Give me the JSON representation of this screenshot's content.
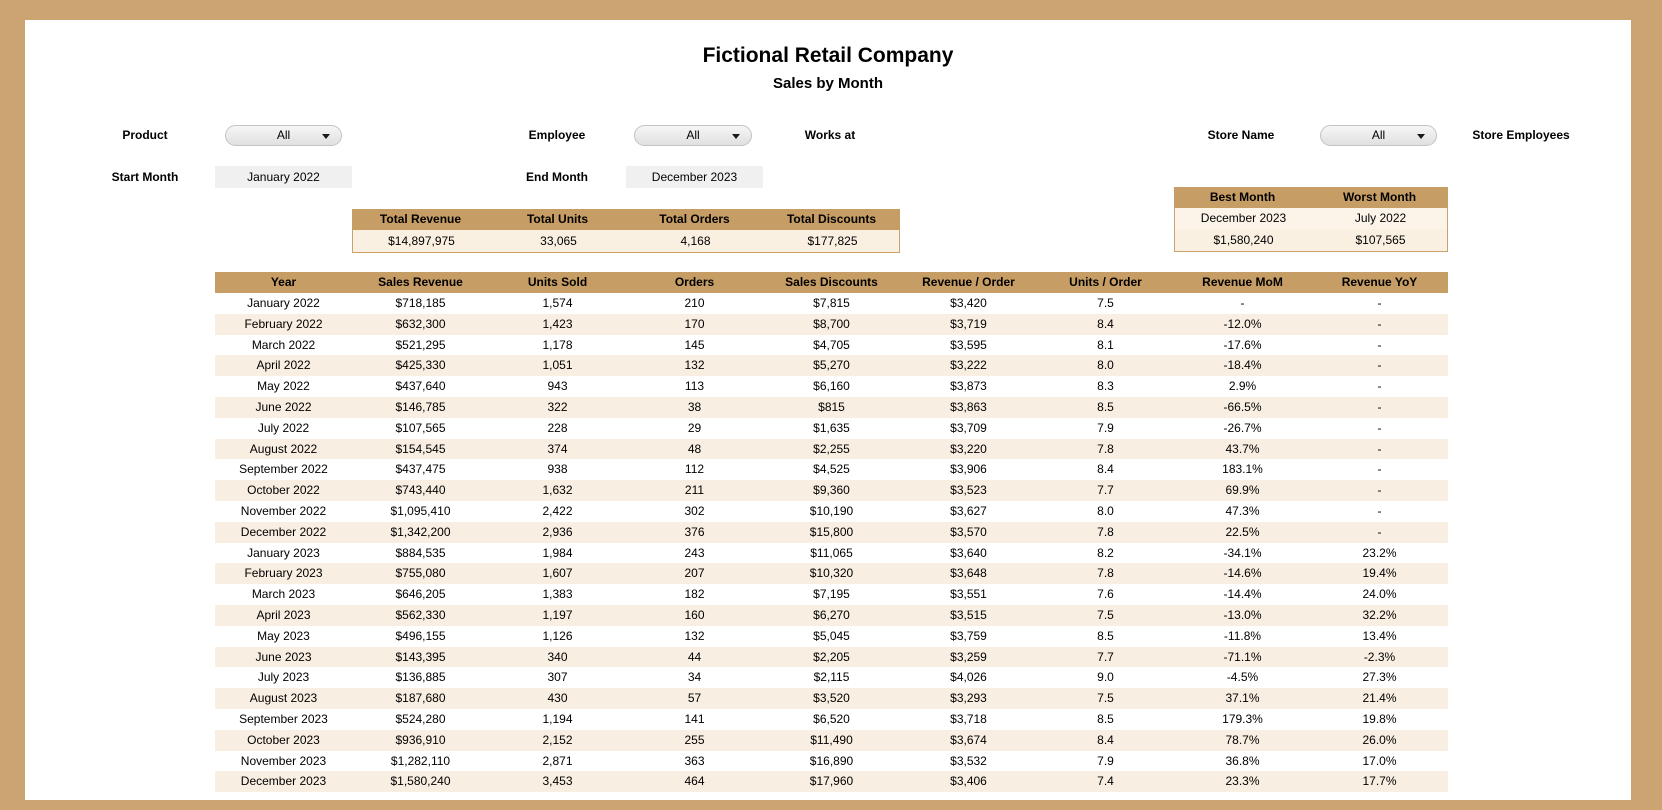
{
  "title": "Fictional Retail Company",
  "subtitle": "Sales by Month",
  "filters": {
    "product": {
      "label": "Product",
      "value": "All"
    },
    "employee": {
      "label": "Employee",
      "value": "All"
    },
    "works_at_label": "Works at",
    "store_name": {
      "label": "Store Name",
      "value": "All"
    },
    "store_employees_label": "Store Employees",
    "start_month": {
      "label": "Start Month",
      "value": "January 2022"
    },
    "end_month": {
      "label": "End Month",
      "value": "December 2023"
    }
  },
  "summary": {
    "headers": [
      "Total Revenue",
      "Total Units",
      "Total Orders",
      "Total Discounts"
    ],
    "values": [
      "$14,897,975",
      "33,065",
      "4,168",
      "$177,825"
    ]
  },
  "best_worst": {
    "headers": [
      "Best Month",
      "Worst Month"
    ],
    "months": [
      "December 2023",
      "July 2022"
    ],
    "values": [
      "$1,580,240",
      "$107,565"
    ]
  },
  "table": {
    "headers": [
      "Year",
      "Sales Revenue",
      "Units Sold",
      "Orders",
      "Sales Discounts",
      "Revenue / Order",
      "Units / Order",
      "Revenue MoM",
      "Revenue YoY"
    ],
    "rows": [
      [
        "January 2022",
        "$718,185",
        "1,574",
        "210",
        "$7,815",
        "$3,420",
        "7.5",
        "-",
        "-"
      ],
      [
        "February 2022",
        "$632,300",
        "1,423",
        "170",
        "$8,700",
        "$3,719",
        "8.4",
        "-12.0%",
        "-"
      ],
      [
        "March 2022",
        "$521,295",
        "1,178",
        "145",
        "$4,705",
        "$3,595",
        "8.1",
        "-17.6%",
        "-"
      ],
      [
        "April 2022",
        "$425,330",
        "1,051",
        "132",
        "$5,270",
        "$3,222",
        "8.0",
        "-18.4%",
        "-"
      ],
      [
        "May 2022",
        "$437,640",
        "943",
        "113",
        "$6,160",
        "$3,873",
        "8.3",
        "2.9%",
        "-"
      ],
      [
        "June 2022",
        "$146,785",
        "322",
        "38",
        "$815",
        "$3,863",
        "8.5",
        "-66.5%",
        "-"
      ],
      [
        "July 2022",
        "$107,565",
        "228",
        "29",
        "$1,635",
        "$3,709",
        "7.9",
        "-26.7%",
        "-"
      ],
      [
        "August 2022",
        "$154,545",
        "374",
        "48",
        "$2,255",
        "$3,220",
        "7.8",
        "43.7%",
        "-"
      ],
      [
        "September 2022",
        "$437,475",
        "938",
        "112",
        "$4,525",
        "$3,906",
        "8.4",
        "183.1%",
        "-"
      ],
      [
        "October 2022",
        "$743,440",
        "1,632",
        "211",
        "$9,360",
        "$3,523",
        "7.7",
        "69.9%",
        "-"
      ],
      [
        "November 2022",
        "$1,095,410",
        "2,422",
        "302",
        "$10,190",
        "$3,627",
        "8.0",
        "47.3%",
        "-"
      ],
      [
        "December 2022",
        "$1,342,200",
        "2,936",
        "376",
        "$15,800",
        "$3,570",
        "7.8",
        "22.5%",
        "-"
      ],
      [
        "January 2023",
        "$884,535",
        "1,984",
        "243",
        "$11,065",
        "$3,640",
        "8.2",
        "-34.1%",
        "23.2%"
      ],
      [
        "February 2023",
        "$755,080",
        "1,607",
        "207",
        "$10,320",
        "$3,648",
        "7.8",
        "-14.6%",
        "19.4%"
      ],
      [
        "March 2023",
        "$646,205",
        "1,383",
        "182",
        "$7,195",
        "$3,551",
        "7.6",
        "-14.4%",
        "24.0%"
      ],
      [
        "April 2023",
        "$562,330",
        "1,197",
        "160",
        "$6,270",
        "$3,515",
        "7.5",
        "-13.0%",
        "32.2%"
      ],
      [
        "May 2023",
        "$496,155",
        "1,126",
        "132",
        "$5,045",
        "$3,759",
        "8.5",
        "-11.8%",
        "13.4%"
      ],
      [
        "June 2023",
        "$143,395",
        "340",
        "44",
        "$2,205",
        "$3,259",
        "7.7",
        "-71.1%",
        "-2.3%"
      ],
      [
        "July 2023",
        "$136,885",
        "307",
        "34",
        "$2,115",
        "$4,026",
        "9.0",
        "-4.5%",
        "27.3%"
      ],
      [
        "August 2023",
        "$187,680",
        "430",
        "57",
        "$3,520",
        "$3,293",
        "7.5",
        "37.1%",
        "21.4%"
      ],
      [
        "September 2023",
        "$524,280",
        "1,194",
        "141",
        "$6,520",
        "$3,718",
        "8.5",
        "179.3%",
        "19.8%"
      ],
      [
        "October 2023",
        "$936,910",
        "2,152",
        "255",
        "$11,490",
        "$3,674",
        "8.4",
        "78.7%",
        "26.0%"
      ],
      [
        "November 2023",
        "$1,282,110",
        "2,871",
        "363",
        "$16,890",
        "$3,532",
        "7.9",
        "36.8%",
        "17.0%"
      ],
      [
        "December 2023",
        "$1,580,240",
        "3,453",
        "464",
        "$17,960",
        "$3,406",
        "7.4",
        "23.3%",
        "17.7%"
      ]
    ]
  },
  "colors": {
    "page_background": "#CCA471",
    "band_tan": "#C69D64",
    "row_stripe": "#F8EEE1",
    "value_cream": "#FAF0E2",
    "input_gray": "#F1F0F0"
  }
}
